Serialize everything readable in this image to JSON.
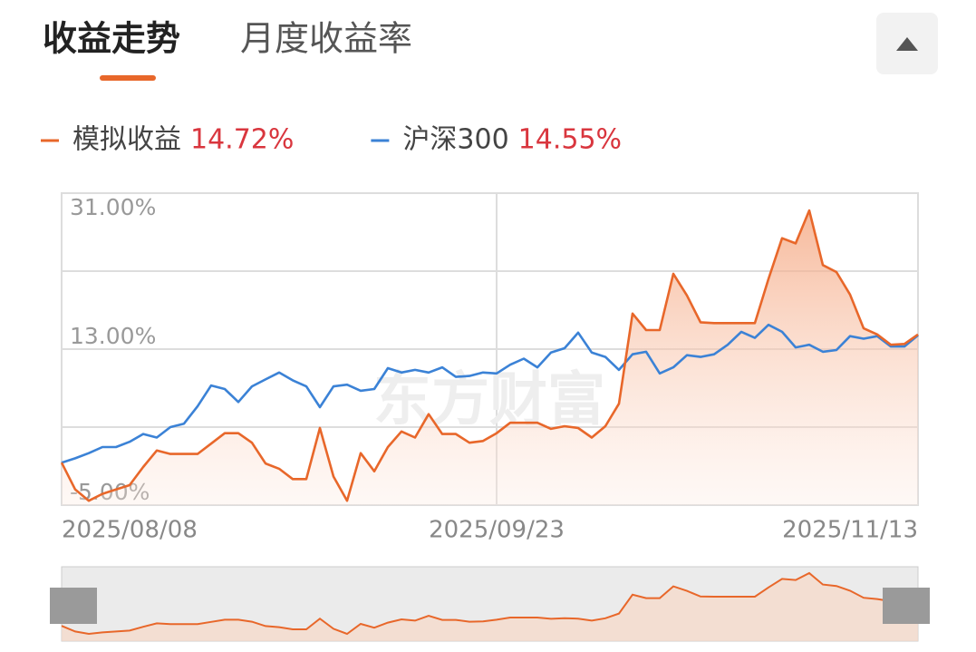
{
  "tabs": [
    "收益走势",
    "月度收益率"
  ],
  "watermark": "东方财富",
  "chart_data": {
    "type": "line",
    "categories": [
      "2025/08/08",
      null,
      null,
      null,
      null,
      null,
      null,
      null,
      null,
      null,
      null,
      null,
      null,
      null,
      null,
      null,
      null,
      null,
      null,
      null,
      null,
      null,
      null,
      null,
      null,
      null,
      null,
      null,
      null,
      null,
      null,
      null,
      "2025/09/23",
      null,
      null,
      null,
      null,
      null,
      null,
      null,
      null,
      null,
      null,
      null,
      null,
      null,
      null,
      null,
      null,
      null,
      null,
      null,
      null,
      null,
      null,
      null,
      null,
      null,
      null,
      null,
      null,
      null,
      null,
      "2025/11/13"
    ],
    "series": [
      {
        "name": "模拟收益",
        "latest_label": "14.72%",
        "color": "#e8672a",
        "values": [
          -0.1,
          -3.2,
          -4.5,
          -3.7,
          -3.2,
          -2.7,
          -0.6,
          1.3,
          0.9,
          0.9,
          0.9,
          2.1,
          3.3,
          3.3,
          2.2,
          -0.2,
          -0.8,
          -2.0,
          -2.0,
          3.9,
          -1.7,
          -4.5,
          1.0,
          -1.1,
          1.7,
          3.5,
          2.8,
          5.5,
          3.2,
          3.2,
          2.2,
          2.4,
          3.3,
          4.5,
          4.5,
          4.5,
          3.8,
          4.1,
          3.9,
          2.8,
          4.1,
          6.7,
          17.1,
          15.2,
          15.2,
          21.7,
          19.2,
          16.1,
          16.0,
          16.0,
          16.0,
          16.0,
          21.1,
          25.8,
          25.2,
          29.0,
          22.7,
          21.9,
          19.3,
          15.4,
          14.7,
          13.5,
          13.6,
          14.7
        ]
      },
      {
        "name": "沪深300",
        "latest_label": "14.55%",
        "color": "#3b82d6",
        "values": [
          -0.1,
          0.4,
          1.0,
          1.7,
          1.7,
          2.3,
          3.2,
          2.8,
          4.0,
          4.4,
          6.4,
          8.8,
          8.4,
          6.9,
          8.7,
          9.5,
          10.3,
          9.4,
          8.7,
          6.3,
          8.7,
          8.9,
          8.2,
          8.4,
          10.8,
          10.3,
          10.6,
          10.3,
          10.9,
          9.8,
          9.9,
          10.3,
          10.2,
          11.2,
          11.9,
          10.9,
          12.6,
          13.1,
          14.9,
          12.6,
          12.1,
          10.6,
          12.4,
          12.7,
          10.2,
          10.9,
          12.3,
          12.1,
          12.4,
          13.5,
          15.0,
          14.3,
          15.8,
          15.0,
          13.2,
          13.5,
          12.7,
          12.9,
          14.5,
          14.2,
          14.5,
          13.3,
          13.3,
          14.6
        ]
      }
    ],
    "ylim": [
      -5,
      31
    ],
    "yticks": [
      {
        "value": -5,
        "label": "-5.00%"
      },
      {
        "value": 4,
        "label": null
      },
      {
        "value": 13,
        "label": "13.00%"
      },
      {
        "value": 22,
        "label": null
      },
      {
        "value": 31,
        "label": "31.00%"
      }
    ],
    "grid": true
  }
}
